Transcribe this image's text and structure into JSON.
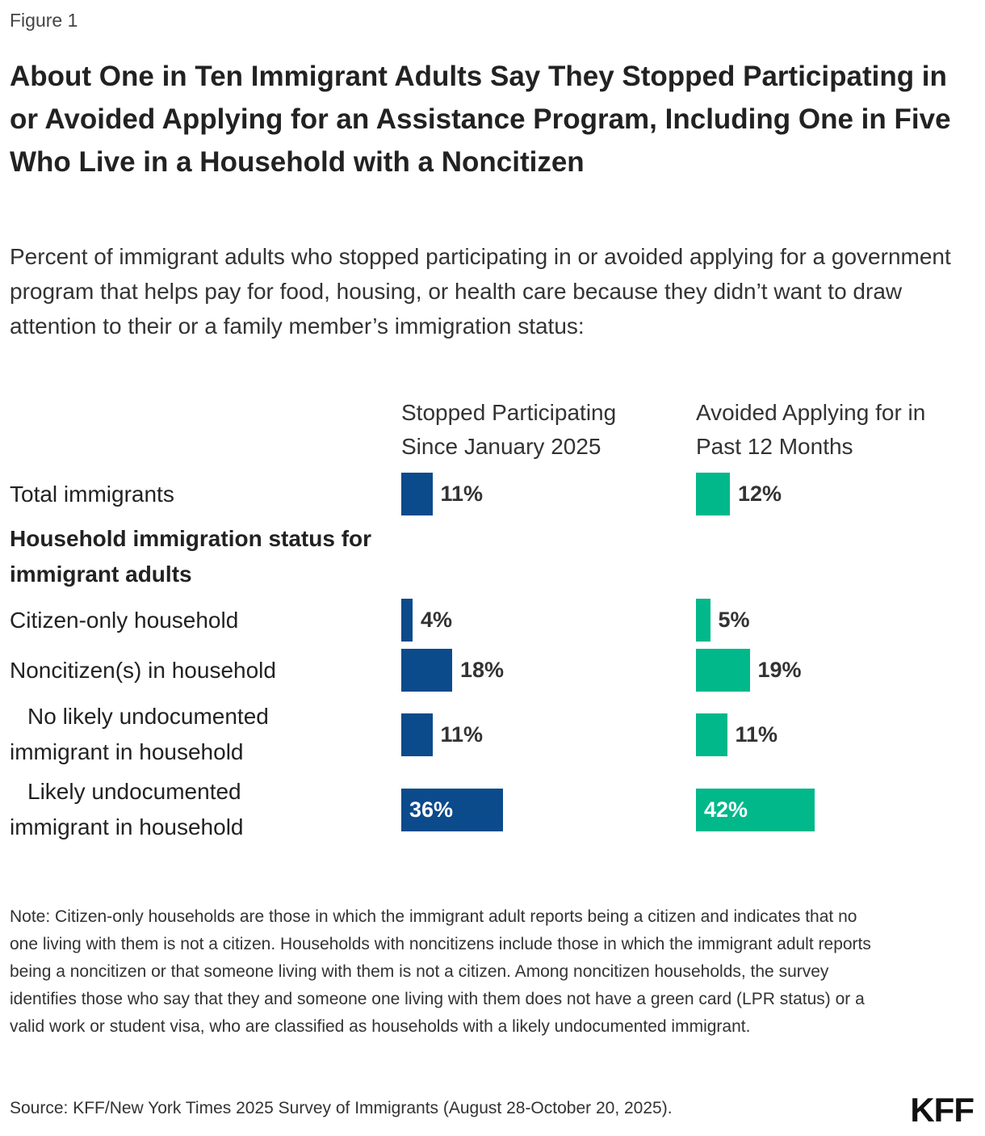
{
  "figure_label": "Figure 1",
  "chart_data": {
    "type": "bar",
    "orientation": "horizontal",
    "title": "About One in Ten Immigrant Adults Say They Stopped Participating in or Avoided Applying for an Assistance Program, Including One in Five Who Live in a Household with a Noncitizen",
    "subtitle": "Percent of immigrant adults who stopped participating in or avoided applying for a government program that helps pay for food, housing, or health care because they didn’t want to draw attention to their or a family member’s immigration status:",
    "categories": [
      "Total immigrants",
      "Household immigration status for immigrant adults",
      "Citizen-only household",
      "Noncitizen(s) in household",
      "No likely undocumented immigrant in household",
      "Likely undocumented immigrant in household"
    ],
    "series": [
      {
        "name": "Stopped Participating Since January 2025",
        "color": "#0b4a8b",
        "values": [
          11,
          null,
          4,
          18,
          11,
          36
        ],
        "value_labels": [
          "11%",
          null,
          "4%",
          "18%",
          "11%",
          "36%"
        ]
      },
      {
        "name": "Avoided Applying for in Past 12 Months",
        "color": "#00b88a",
        "values": [
          12,
          null,
          5,
          19,
          11,
          42
        ],
        "value_labels": [
          "12%",
          null,
          "5%",
          "19%",
          "11%",
          "42%"
        ]
      }
    ],
    "note": "Note: Citizen-only households are those in which the immigrant adult reports being a citizen and indicates that no one living with them is not a citizen. Households with noncitizens include those in which the immigrant adult reports being a noncitizen or that someone living with them is not a citizen. Among noncitizen households, the survey identifies those who say that they and someone one living with them does not have a green card (LPR status) or a valid work or student visa, who are classified as households with a likely undocumented immigrant.",
    "source": "Source: KFF/New York Times 2025 Survey of Immigrants (August 28-October 20, 2025)."
  },
  "logo": "KFF"
}
